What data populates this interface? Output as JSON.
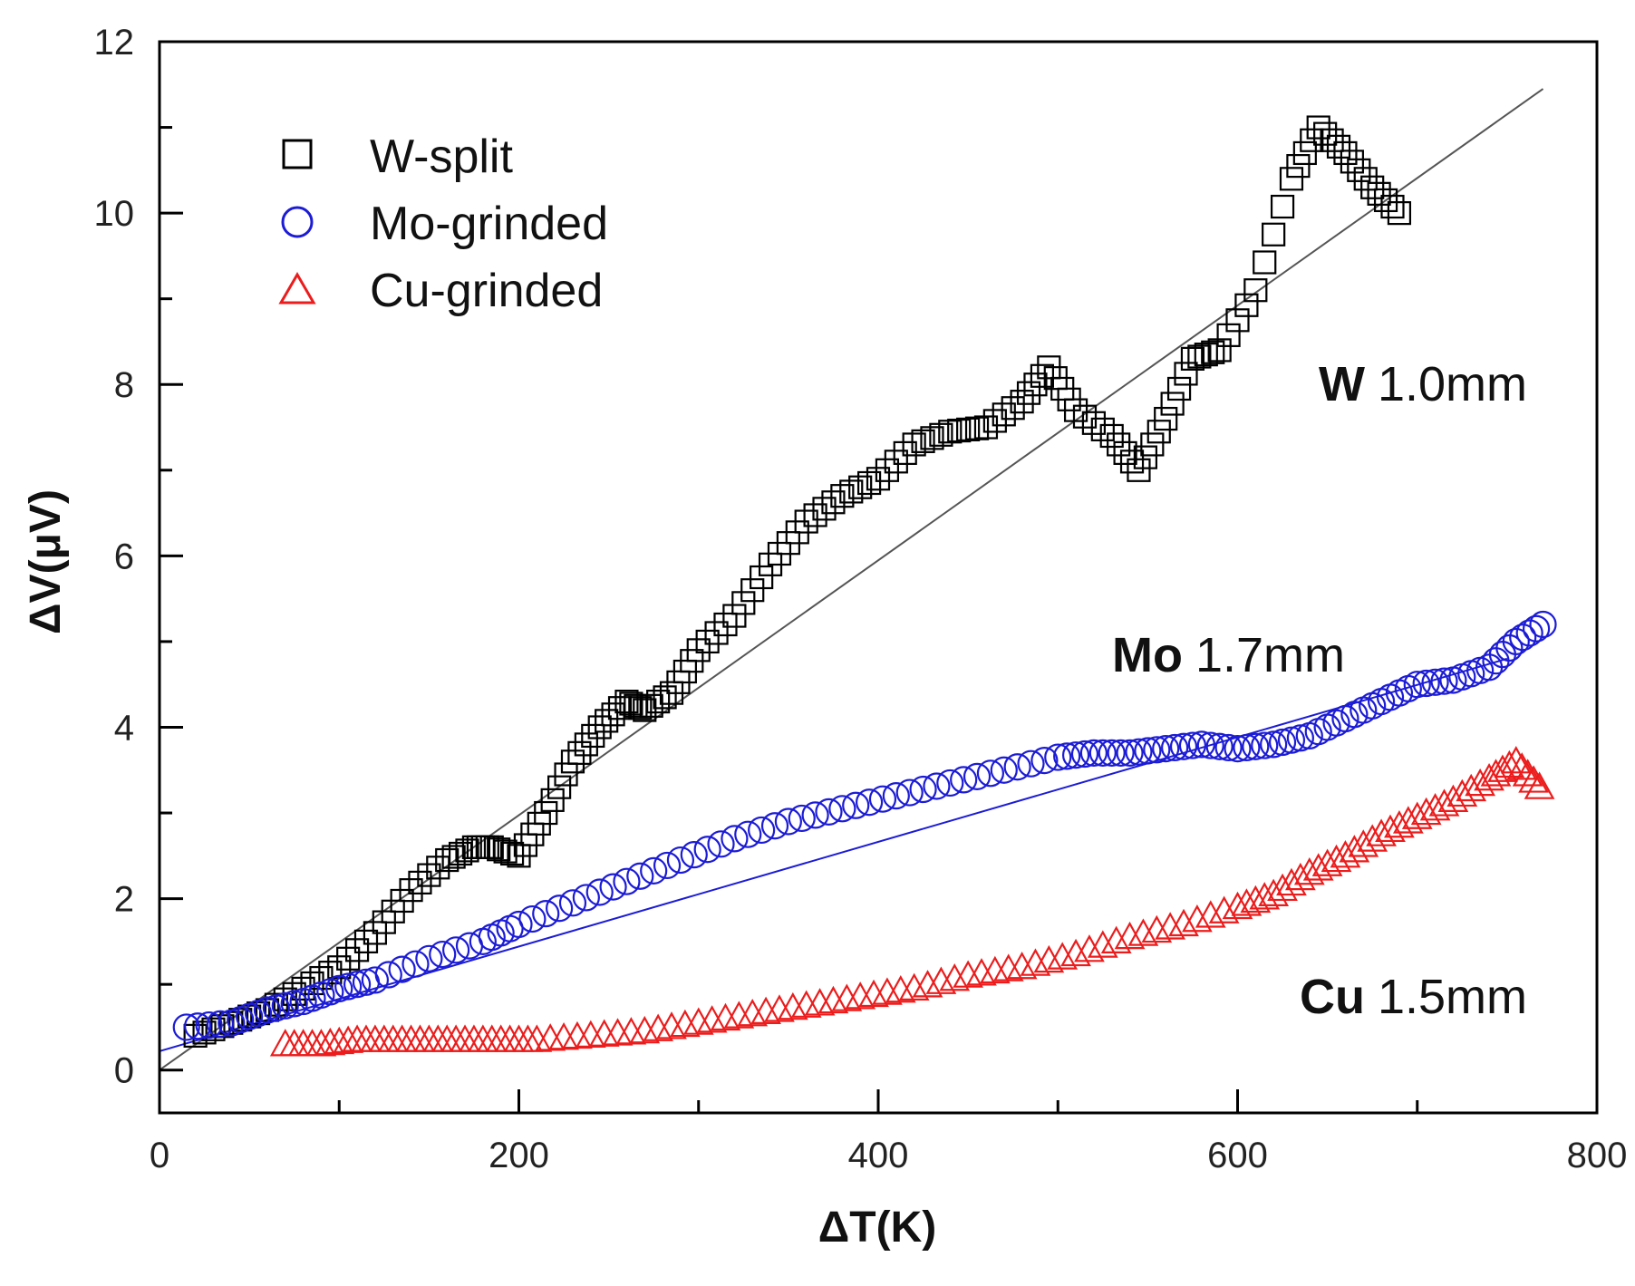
{
  "chart_data": {
    "type": "scatter",
    "title": "",
    "xlabel": "ΔT(K)",
    "ylabel": "ΔV(μV)",
    "xlim": [
      0,
      800
    ],
    "ylim": [
      -0.5,
      12
    ],
    "xticks": [
      0,
      200,
      400,
      600,
      800
    ],
    "yticks": [
      0,
      2,
      4,
      6,
      8,
      10,
      12
    ],
    "grid": false,
    "legend": {
      "position": "top-left",
      "entries": [
        "W-split",
        "Mo-grinded",
        "Cu-grinded"
      ]
    },
    "annotations": [
      {
        "bold": "W",
        "text": "1.0mm",
        "series": "W-split"
      },
      {
        "bold": "Mo",
        "text": "1.7mm",
        "series": "Mo-grinded"
      },
      {
        "bold": "Cu",
        "text": "1.5mm",
        "series": "Cu-grinded"
      }
    ],
    "series": [
      {
        "name": "W-split",
        "marker": "square",
        "color": "#000000",
        "x": [
          20,
          40,
          60,
          80,
          100,
          120,
          140,
          160,
          175,
          185,
          200,
          215,
          230,
          245,
          260,
          270,
          285,
          300,
          320,
          340,
          360,
          380,
          400,
          420,
          440,
          460,
          480,
          495,
          510,
          530,
          545,
          560,
          575,
          590,
          610,
          630,
          645,
          660,
          675,
          690
        ],
        "y": [
          0.4,
          0.55,
          0.7,
          0.95,
          1.2,
          1.6,
          2.1,
          2.45,
          2.6,
          2.6,
          2.5,
          3.0,
          3.6,
          4.0,
          4.3,
          4.2,
          4.4,
          4.9,
          5.3,
          5.9,
          6.4,
          6.7,
          6.9,
          7.3,
          7.45,
          7.5,
          7.8,
          8.2,
          7.7,
          7.4,
          7.0,
          7.6,
          8.3,
          8.4,
          9.1,
          10.4,
          11.0,
          10.7,
          10.3,
          10.0
        ]
      },
      {
        "name": "Mo-grinded",
        "marker": "circle",
        "color": "#1c1cd6",
        "x": [
          15,
          40,
          60,
          80,
          100,
          120,
          150,
          180,
          200,
          230,
          260,
          290,
          320,
          350,
          380,
          410,
          440,
          470,
          500,
          520,
          540,
          560,
          580,
          600,
          620,
          640,
          660,
          680,
          700,
          720,
          740,
          755,
          770
        ],
        "y": [
          0.5,
          0.55,
          0.7,
          0.8,
          0.95,
          1.05,
          1.3,
          1.5,
          1.7,
          1.95,
          2.2,
          2.45,
          2.7,
          2.9,
          3.05,
          3.2,
          3.35,
          3.5,
          3.65,
          3.7,
          3.7,
          3.75,
          3.8,
          3.75,
          3.8,
          3.9,
          4.1,
          4.3,
          4.5,
          4.55,
          4.7,
          5.0,
          5.2
        ]
      },
      {
        "name": "Cu-grinded",
        "marker": "triangle",
        "color": "#ec1c1c",
        "x": [
          70,
          90,
          110,
          130,
          150,
          170,
          190,
          210,
          240,
          270,
          300,
          330,
          360,
          390,
          420,
          450,
          480,
          510,
          540,
          570,
          600,
          620,
          640,
          660,
          680,
          700,
          720,
          740,
          755,
          768
        ],
        "y": [
          0.3,
          0.3,
          0.35,
          0.35,
          0.35,
          0.35,
          0.35,
          0.35,
          0.4,
          0.45,
          0.55,
          0.65,
          0.75,
          0.85,
          0.95,
          1.1,
          1.2,
          1.35,
          1.55,
          1.7,
          1.9,
          2.05,
          2.3,
          2.5,
          2.75,
          2.95,
          3.15,
          3.4,
          3.6,
          3.3
        ]
      }
    ],
    "fit_lines": [
      {
        "series": "W-split",
        "color": "#555555",
        "x": [
          0,
          770
        ],
        "y": [
          0.0,
          11.45
        ]
      },
      {
        "series": "Mo-grinded",
        "color": "#1c1cd6",
        "x": [
          0,
          750
        ],
        "y": [
          0.22,
          4.8
        ]
      }
    ]
  }
}
